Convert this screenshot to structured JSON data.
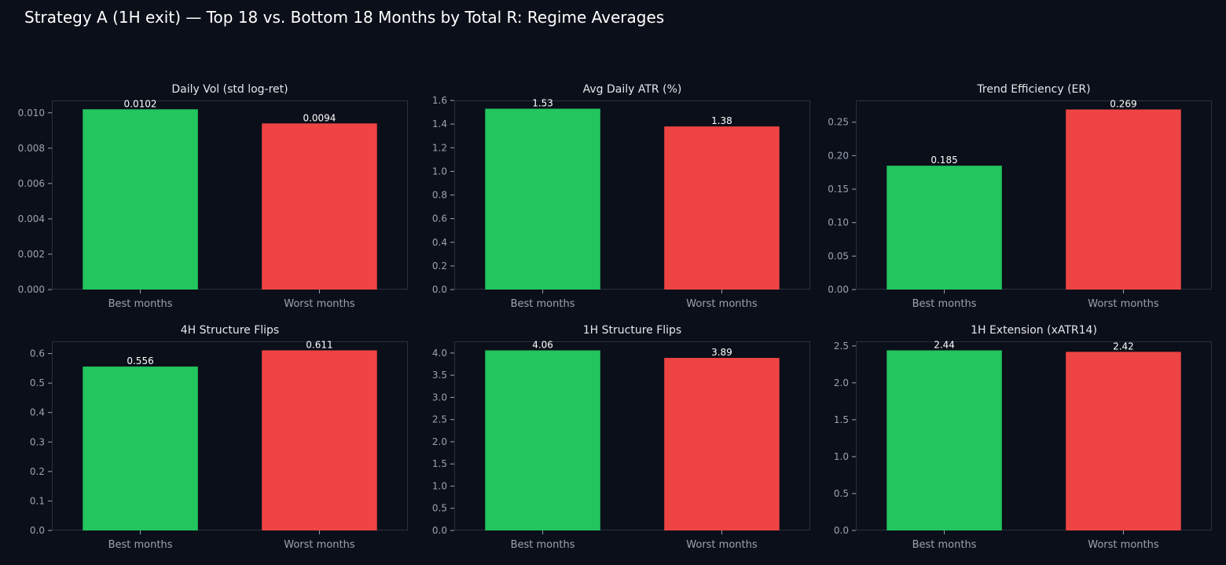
{
  "figure_title": "Strategy A (1H exit) — Top 18 vs. Bottom 18 Months by Total R: Regime Averages",
  "colors": {
    "background": "#0b0f19",
    "best": "#22c55e",
    "worst": "#ef4444",
    "axis": "#2a3040",
    "tick_text": "#9aa3b2",
    "title_text": "#e5e7eb",
    "value_text": "#ffffff"
  },
  "chart_data": [
    {
      "type": "bar",
      "title": "Daily Vol (std log-ret)",
      "categories": [
        "Best months",
        "Worst months"
      ],
      "values": [
        0.0102,
        0.0094
      ],
      "value_labels": [
        "0.0102",
        "0.0094"
      ],
      "ylim": [
        0,
        0.0107
      ],
      "yticks": [
        0,
        0.002,
        0.004,
        0.006,
        0.008,
        0.01
      ],
      "ytick_labels": [
        "0.000",
        "0.002",
        "0.004",
        "0.006",
        "0.008",
        "0.010"
      ],
      "grid": false
    },
    {
      "type": "bar",
      "title": "Avg Daily ATR (%)",
      "categories": [
        "Best months",
        "Worst months"
      ],
      "values": [
        1.53,
        1.38
      ],
      "value_labels": [
        "1.53",
        "1.38"
      ],
      "ylim": [
        0,
        1.6
      ],
      "yticks": [
        0,
        0.2,
        0.4,
        0.6,
        0.8,
        1.0,
        1.2,
        1.4,
        1.6
      ],
      "ytick_labels": [
        "0.0",
        "0.2",
        "0.4",
        "0.6",
        "0.8",
        "1.0",
        "1.2",
        "1.4",
        "1.6"
      ],
      "grid": false
    },
    {
      "type": "bar",
      "title": "Trend Efficiency (ER)",
      "categories": [
        "Best months",
        "Worst months"
      ],
      "values": [
        0.185,
        0.269
      ],
      "value_labels": [
        "0.185",
        "0.269"
      ],
      "ylim": [
        0,
        0.2825
      ],
      "yticks": [
        0,
        0.05,
        0.1,
        0.15,
        0.2,
        0.25
      ],
      "ytick_labels": [
        "0.00",
        "0.05",
        "0.10",
        "0.15",
        "0.20",
        "0.25"
      ],
      "grid": false
    },
    {
      "type": "bar",
      "title": "4H Structure Flips",
      "categories": [
        "Best months",
        "Worst months"
      ],
      "values": [
        0.556,
        0.611
      ],
      "value_labels": [
        "0.556",
        "0.611"
      ],
      "ylim": [
        0,
        0.6415
      ],
      "yticks": [
        0,
        0.1,
        0.2,
        0.3,
        0.4,
        0.5,
        0.6
      ],
      "ytick_labels": [
        "0.0",
        "0.1",
        "0.2",
        "0.3",
        "0.4",
        "0.5",
        "0.6"
      ],
      "grid": false
    },
    {
      "type": "bar",
      "title": "1H Structure Flips",
      "categories": [
        "Best months",
        "Worst months"
      ],
      "values": [
        4.06,
        3.89
      ],
      "value_labels": [
        "4.06",
        "3.89"
      ],
      "ylim": [
        0,
        4.263
      ],
      "yticks": [
        0,
        0.5,
        1.0,
        1.5,
        2.0,
        2.5,
        3.0,
        3.5,
        4.0
      ],
      "ytick_labels": [
        "0.0",
        "0.5",
        "1.0",
        "1.5",
        "2.0",
        "2.5",
        "3.0",
        "3.5",
        "4.0"
      ],
      "grid": false
    },
    {
      "type": "bar",
      "title": "1H Extension (xATR14)",
      "categories": [
        "Best months",
        "Worst months"
      ],
      "values": [
        2.44,
        2.42
      ],
      "value_labels": [
        "2.44",
        "2.42"
      ],
      "ylim": [
        0,
        2.562
      ],
      "yticks": [
        0,
        0.5,
        1.0,
        1.5,
        2.0,
        2.5
      ],
      "ytick_labels": [
        "0.0",
        "0.5",
        "1.0",
        "1.5",
        "2.0",
        "2.5"
      ],
      "grid": false
    }
  ]
}
